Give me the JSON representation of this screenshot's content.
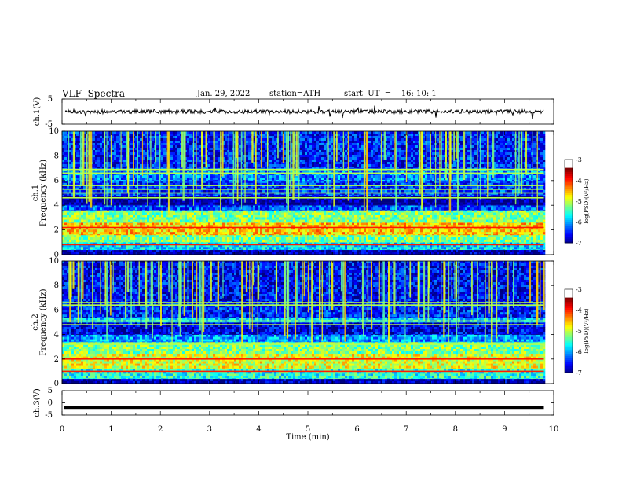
{
  "header": {
    "title": "VLF  Spectra",
    "date": "Jan. 29, 2022",
    "station": "station=ATH",
    "start": "start  UT  =    16: 10: 1"
  },
  "chart_data": [
    {
      "type": "line",
      "panel": "ch1-waveform",
      "ylabel": "ch.1(V)",
      "ylim": [
        -5,
        5
      ],
      "yticks": [
        "5",
        "-5"
      ],
      "xlim": [
        0,
        10
      ],
      "series": [
        {
          "values_note_approx_level": 0
        }
      ],
      "level": 0.0
    },
    {
      "type": "heatmap",
      "panel": "ch1-spectrogram",
      "ylabel": "ch.1\nFrequency  (kHz)",
      "ylabel_line1": "ch.1",
      "ylabel_line2": "Frequency  (kHz)",
      "ylim": [
        0,
        10
      ],
      "yticks": [
        "0",
        "2",
        "4",
        "6",
        "8",
        "10"
      ],
      "xlim": [
        0,
        10
      ],
      "data_end_min": 9.8,
      "bands_khz": [
        {
          "from": 0.0,
          "to": 0.4,
          "level": -6.8
        },
        {
          "from": 0.4,
          "to": 1.0,
          "level": -5.6
        },
        {
          "from": 1.0,
          "to": 1.6,
          "level": -5.0
        },
        {
          "from": 1.6,
          "to": 2.6,
          "level": -4.3
        },
        {
          "from": 2.6,
          "to": 3.6,
          "level": -5.0
        },
        {
          "from": 3.6,
          "to": 4.0,
          "level": -6.2
        },
        {
          "from": 4.0,
          "to": 4.8,
          "level": -6.9
        },
        {
          "from": 4.8,
          "to": 6.0,
          "level": -6.3
        },
        {
          "from": 6.0,
          "to": 7.0,
          "level": -6.0
        },
        {
          "from": 7.0,
          "to": 10.0,
          "level": -6.4
        }
      ],
      "lines_khz": [
        0.8,
        2.2,
        4.6,
        5.0,
        5.3,
        5.6,
        6.6,
        6.9
      ]
    },
    {
      "type": "heatmap",
      "panel": "ch2-spectrogram",
      "ylabel_line1": "ch.2",
      "ylabel_line2": "Frequency  (kHz)",
      "ylim": [
        0,
        10
      ],
      "yticks": [
        "0",
        "2",
        "4",
        "6",
        "8",
        "10"
      ],
      "xlim": [
        0,
        10
      ],
      "data_end_min": 9.8,
      "bands_khz": [
        {
          "from": 0.0,
          "to": 0.4,
          "level": -6.8
        },
        {
          "from": 0.4,
          "to": 1.2,
          "level": -5.4
        },
        {
          "from": 1.2,
          "to": 2.4,
          "level": -4.6
        },
        {
          "from": 2.4,
          "to": 3.4,
          "level": -5.0
        },
        {
          "from": 3.4,
          "to": 4.0,
          "level": -5.9
        },
        {
          "from": 4.0,
          "to": 5.0,
          "level": -6.6
        },
        {
          "from": 5.0,
          "to": 5.4,
          "level": -5.6
        },
        {
          "from": 5.4,
          "to": 6.4,
          "level": -6.4
        },
        {
          "from": 6.4,
          "to": 10.0,
          "level": -6.5
        }
      ],
      "lines_khz": [
        1.0,
        2.0,
        3.2,
        4.8,
        5.1,
        6.4,
        6.6
      ]
    },
    {
      "type": "line",
      "panel": "ch3-waveform",
      "ylabel": "ch.3(V)",
      "ylim": [
        -5,
        5
      ],
      "yticks": [
        "5",
        "0",
        "-5"
      ],
      "xlim": [
        0,
        10
      ],
      "level": -2.0
    }
  ],
  "xaxis": {
    "label": "Time  (min)",
    "ticks": [
      "0",
      "1",
      "2",
      "3",
      "4",
      "5",
      "6",
      "7",
      "8",
      "9",
      "10"
    ]
  },
  "colorbar": {
    "label": "log(PSD)(V²/Hz)",
    "range": [
      -7,
      -3
    ],
    "ticks": [
      "-3",
      "-4",
      "-5",
      "-6",
      "-7"
    ]
  }
}
